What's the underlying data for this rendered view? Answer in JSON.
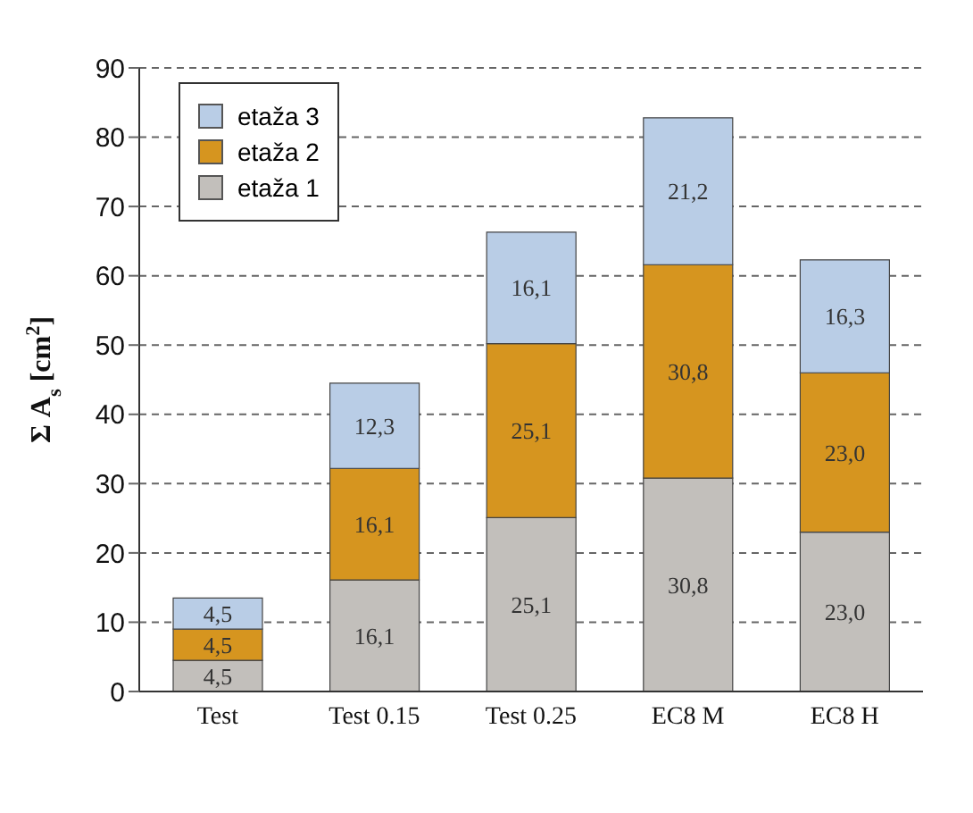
{
  "chart_data": {
    "type": "bar",
    "stacked": true,
    "categories": [
      "Test",
      "Test 0.15",
      "Test 0.25",
      "EC8 M",
      "EC8 H"
    ],
    "ylabel": "Σ A$_{s}$ [cm$^{2}$]",
    "ylim": [
      0,
      90
    ],
    "yticks": [
      0,
      10,
      20,
      30,
      40,
      50,
      60,
      70,
      80,
      90
    ],
    "grid": "y",
    "legend": "top left",
    "series": [
      {
        "name": "etaža 1",
        "color": "#c2bfbb",
        "values": [
          4.5,
          16.1,
          25.1,
          30.8,
          23.0
        ],
        "value_labels": [
          "4,5",
          "16,1",
          "25,1",
          "30,8",
          "23,0"
        ]
      },
      {
        "name": "etaža 2",
        "color": "#d6951f",
        "values": [
          4.5,
          16.1,
          25.1,
          30.8,
          23.0
        ],
        "value_labels": [
          "4,5",
          "16,1",
          "25,1",
          "30,8",
          "23,0"
        ]
      },
      {
        "name": "etaža 3",
        "color": "#b9cde6",
        "values": [
          4.5,
          12.3,
          16.1,
          21.2,
          16.3
        ],
        "value_labels": [
          "4,5",
          "12,3",
          "16,1",
          "21,2",
          "16,3"
        ]
      }
    ]
  }
}
